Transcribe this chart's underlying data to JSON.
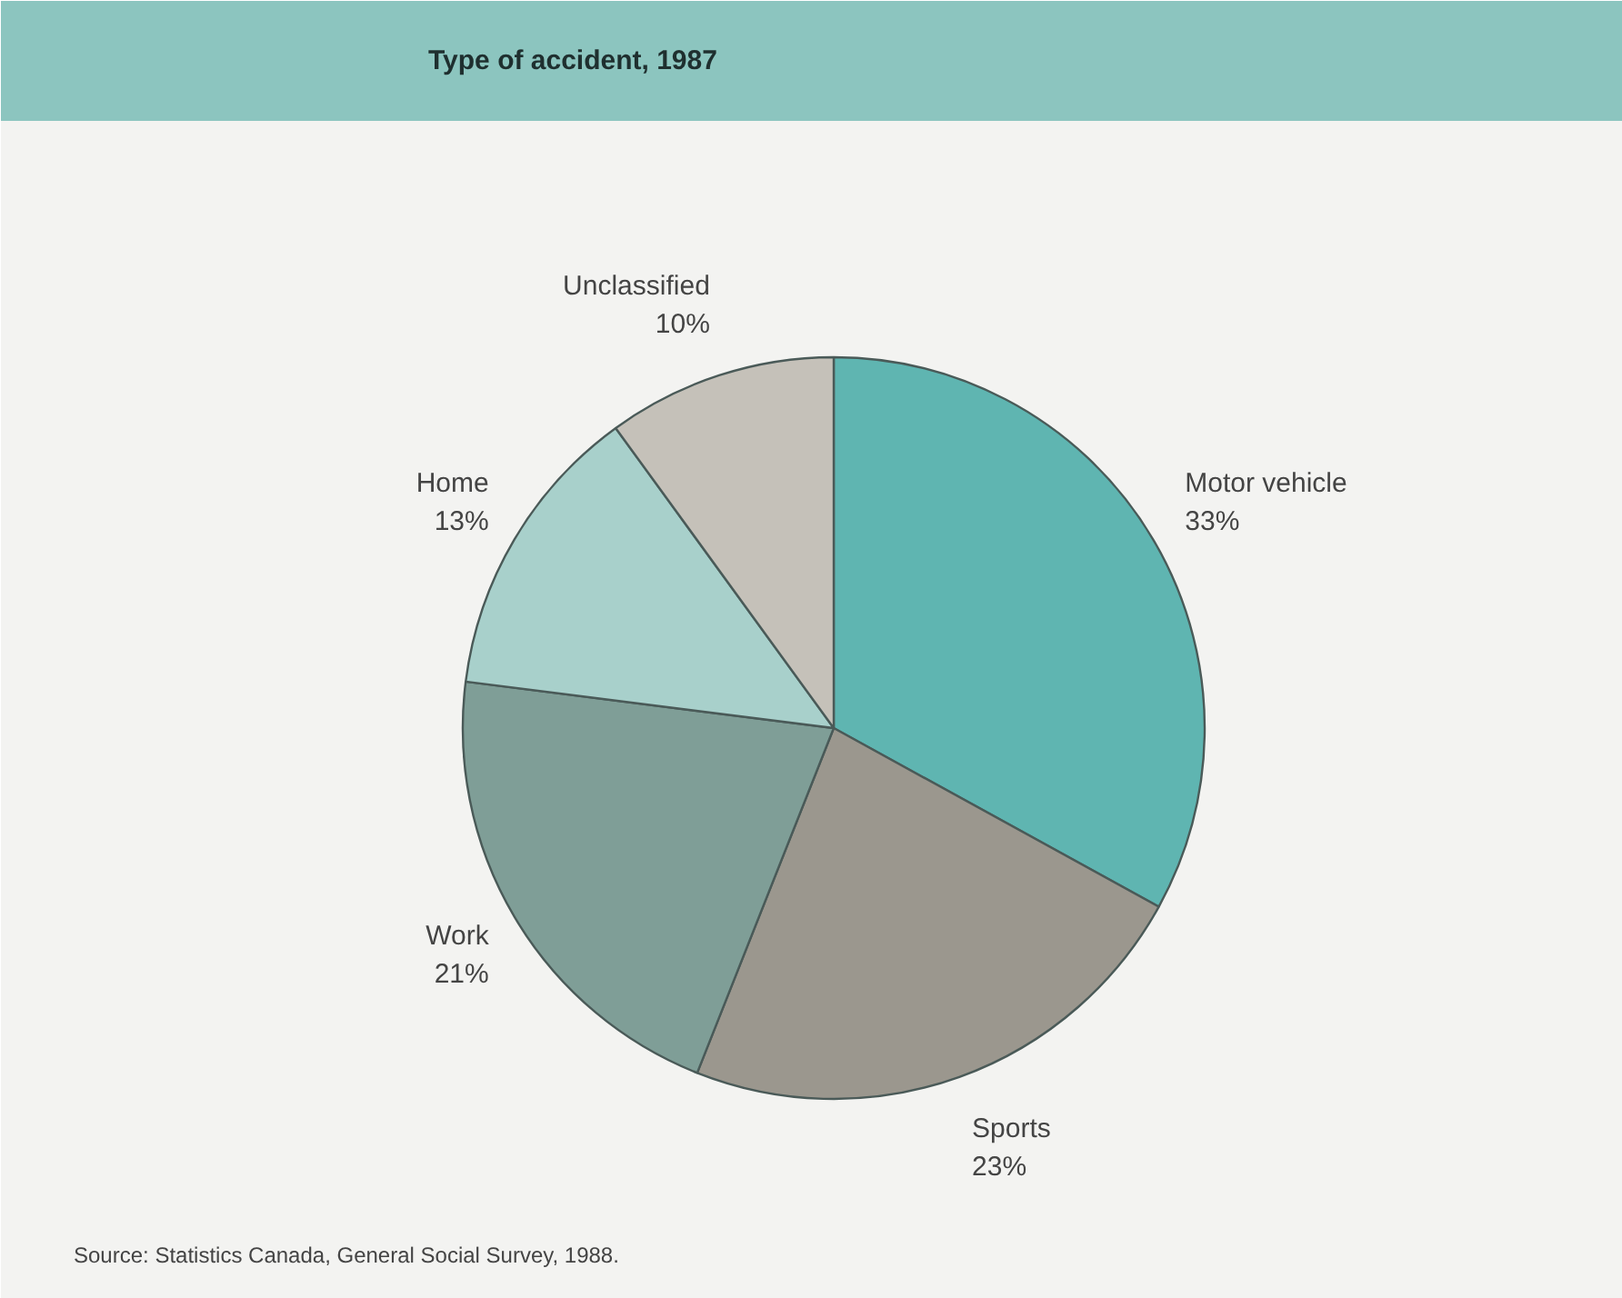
{
  "chart_data": {
    "type": "pie",
    "title": "Type of accident, 1987",
    "categories": [
      "Motor vehicle",
      "Sports",
      "Work",
      "Home",
      "Unclassified"
    ],
    "values": [
      33,
      23,
      21,
      13,
      10
    ],
    "colors": [
      "#5fb5b1",
      "#9b978e",
      "#7f9e97",
      "#a8d0cb",
      "#c5c1b9"
    ],
    "value_labels": [
      "33%",
      "23%",
      "21%",
      "13%",
      "10%"
    ],
    "annotations": [
      "Source: Statistics Canada, General Social Survey, 1988."
    ]
  }
}
